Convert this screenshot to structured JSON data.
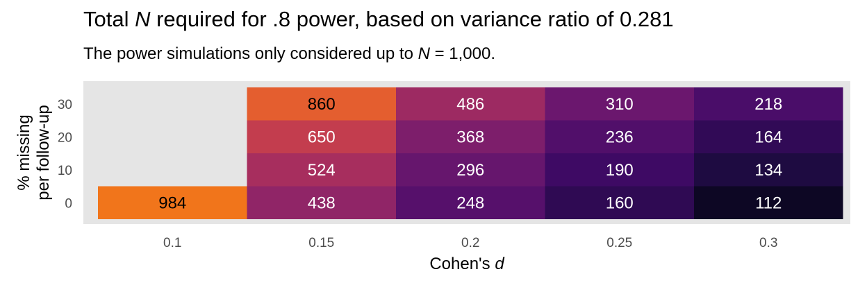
{
  "title": {
    "pre": "Total ",
    "var": "N",
    "post": " required for .8 power, based on variance ratio of 0.281"
  },
  "subtitle": {
    "pre": "The power simulations only considered up to ",
    "var": "N",
    "post": " = 1,000."
  },
  "chart_data": {
    "type": "heatmap",
    "x_categories": [
      "0.1",
      "0.15",
      "0.2",
      "0.25",
      "0.3"
    ],
    "y_categories": [
      "0",
      "10",
      "20",
      "30"
    ],
    "xlabel": "Cohen's d",
    "ylabel": [
      "% missing",
      "per follow-up"
    ],
    "fill_scale": "inferno",
    "fill_range": [
      112,
      1000
    ],
    "na_fill": "#e5e5e5",
    "panel_background": "#e5e5e5",
    "cells": [
      {
        "x": "0.1",
        "y": "0",
        "value": 984
      },
      {
        "x": "0.1",
        "y": "10",
        "value": null
      },
      {
        "x": "0.1",
        "y": "20",
        "value": null
      },
      {
        "x": "0.1",
        "y": "30",
        "value": null
      },
      {
        "x": "0.15",
        "y": "0",
        "value": 438
      },
      {
        "x": "0.15",
        "y": "10",
        "value": 524
      },
      {
        "x": "0.15",
        "y": "20",
        "value": 650
      },
      {
        "x": "0.15",
        "y": "30",
        "value": 860
      },
      {
        "x": "0.2",
        "y": "0",
        "value": 248
      },
      {
        "x": "0.2",
        "y": "10",
        "value": 296
      },
      {
        "x": "0.2",
        "y": "20",
        "value": 368
      },
      {
        "x": "0.2",
        "y": "30",
        "value": 486
      },
      {
        "x": "0.25",
        "y": "0",
        "value": 160
      },
      {
        "x": "0.25",
        "y": "10",
        "value": 190
      },
      {
        "x": "0.25",
        "y": "20",
        "value": 236
      },
      {
        "x": "0.25",
        "y": "30",
        "value": 310
      },
      {
        "x": "0.3",
        "y": "0",
        "value": 112
      },
      {
        "x": "0.3",
        "y": "10",
        "value": 134
      },
      {
        "x": "0.3",
        "y": "20",
        "value": 164
      },
      {
        "x": "0.3",
        "y": "30",
        "value": 218
      }
    ]
  }
}
